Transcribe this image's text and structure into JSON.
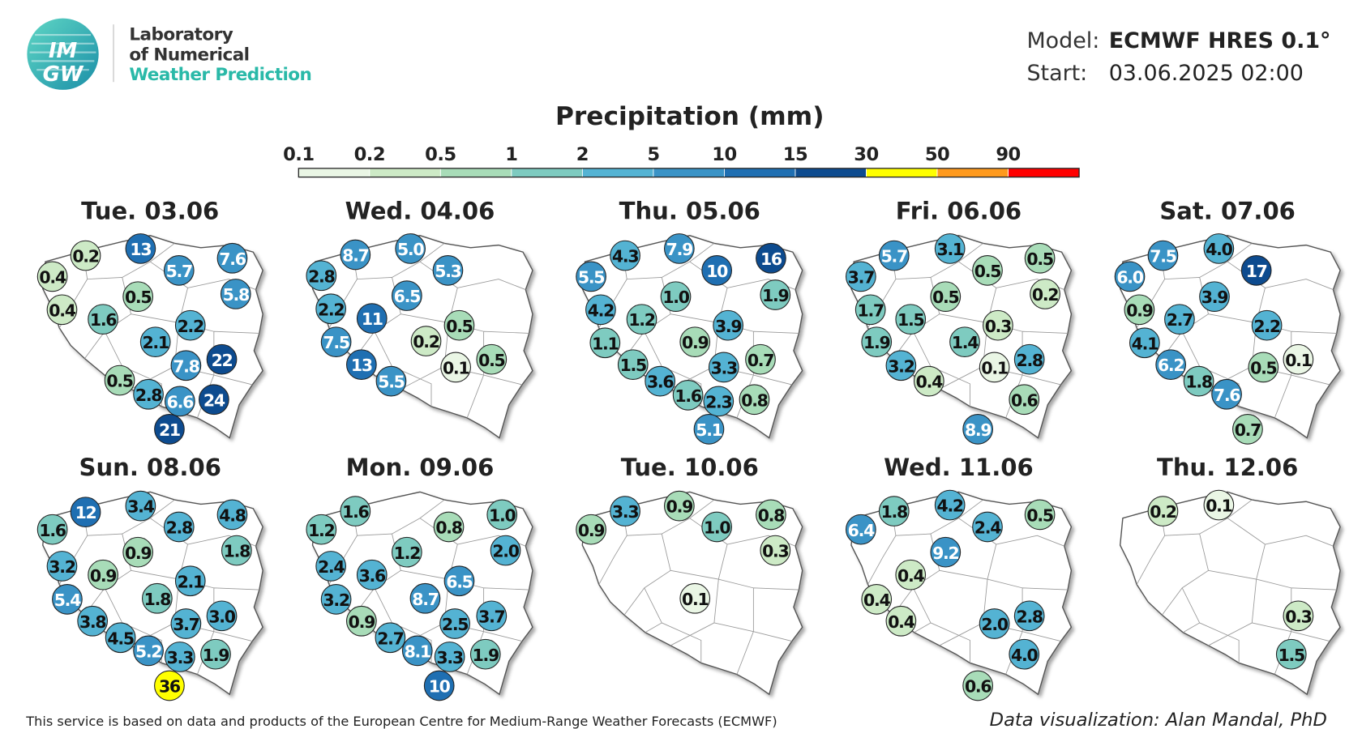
{
  "header": {
    "logo_text": [
      "IM",
      "GW"
    ],
    "lab_lines": [
      "Laboratory",
      "of Numerical",
      "Weather Prediction"
    ],
    "model_label": "Model:",
    "model": "ECMWF HRES 0.1°",
    "start_label": "Start:",
    "start": "03.06.2025 02:00"
  },
  "legend": {
    "title": "Precipitation (mm)",
    "thresholds": [
      0.1,
      0.2,
      0.5,
      1,
      2,
      5,
      10,
      15,
      30,
      50,
      90
    ],
    "colors": [
      "#eaf6e5",
      "#cdeac6",
      "#a8dcb8",
      "#7ecbc0",
      "#54b3d3",
      "#3a93c6",
      "#1f6fb2",
      "#0d4b8f",
      "#ffff00",
      "#ff9a1e",
      "#ff0000"
    ]
  },
  "panels": [
    {
      "title": "Tue. 03.06",
      "values": [
        13,
        0.2,
        0.4,
        5.7,
        7.6,
        5.8,
        0.5,
        0.4,
        1.6,
        2.2,
        2.1,
        7.8,
        22,
        0.5,
        2.8,
        6.6,
        24,
        21
      ]
    },
    {
      "title": "Wed. 04.06",
      "values": [
        8.7,
        5,
        2.8,
        5.3,
        6.5,
        2.2,
        11,
        0.5,
        0.2,
        7.5,
        13,
        0.1,
        0.5,
        5.5
      ],
      "value_labels": {
        "1": "5.0"
      }
    },
    {
      "title": "Thu. 05.06",
      "values": [
        4.3,
        7.9,
        10,
        16,
        5.5,
        1,
        1.9,
        4.2,
        1.2,
        3.9,
        1.1,
        0.9,
        1.5,
        3.3,
        0.7,
        3.6,
        1.6,
        2.3,
        0.8,
        5.1
      ],
      "value_labels": {
        "5": "1.0"
      }
    },
    {
      "title": "Fri. 06.06",
      "values": [
        5.7,
        3.1,
        0.5,
        0.5,
        3.7,
        0.5,
        0.2,
        1.7,
        1.5,
        0.3,
        1.9,
        1.4,
        3.2,
        0.1,
        2.8,
        0.4,
        0.6,
        8.9
      ]
    },
    {
      "title": "Sat. 07.06",
      "values": [
        7.5,
        4,
        17,
        6,
        3.9,
        0.9,
        2.7,
        2.2,
        4.1,
        0.5,
        0.1,
        6.2,
        1.8,
        7.6,
        0.7
      ],
      "value_labels": {
        "1": "4.0",
        "3": "6.0"
      }
    },
    {
      "title": "Sun. 08.06",
      "values": [
        12,
        3.4,
        2.8,
        4.8,
        1.6,
        0.9,
        1.8,
        3.2,
        0.9,
        2.1,
        5.4,
        1.8,
        3.8,
        3.7,
        3,
        4.5,
        5.2,
        3.3,
        1.9,
        36
      ],
      "value_labels": {
        "14": "3.0"
      }
    },
    {
      "title": "Mon. 09.06",
      "values": [
        1.6,
        0.8,
        1,
        1.2,
        2,
        1.2,
        2.4,
        3.6,
        6.5,
        3.2,
        8.7,
        0.9,
        2.5,
        3.7,
        2.7,
        8.1,
        3.3,
        1.9,
        10
      ],
      "value_labels": {
        "2": "1.0",
        "4": "2.0"
      }
    },
    {
      "title": "Tue. 10.06",
      "values": [
        3.3,
        0.9,
        1,
        0.8,
        0.9,
        0.3,
        0.1
      ],
      "value_labels": {
        "2": "1.0"
      }
    },
    {
      "title": "Wed. 11.06",
      "values": [
        1.8,
        4.2,
        2.4,
        0.5,
        6.4,
        9.2,
        0.4,
        0.4,
        0.4,
        2,
        2.8,
        4,
        0.6
      ],
      "value_labels": {
        "9": "2.0",
        "11": "4.0"
      }
    },
    {
      "title": "Thu. 12.06",
      "values": [
        0.2,
        0.1,
        0.3,
        1.5
      ]
    }
  ],
  "footer": {
    "source": "This service is based on data and products of the European Centre for Medium-Range Weather Forecasts (ECMWF)",
    "credit": "Data visualization: Alan Mandal, PhD"
  }
}
